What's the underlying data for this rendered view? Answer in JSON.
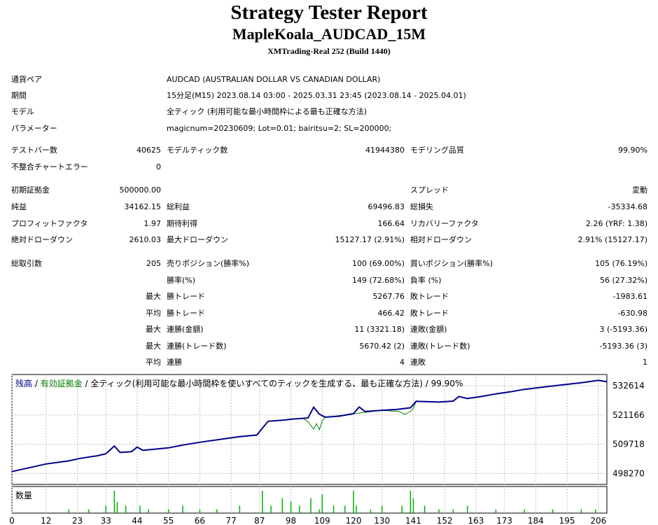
{
  "header": {
    "title": "Strategy Tester Report",
    "expert": "MapleKoala_AUDCAD_15M",
    "server": "XMTrading-Real 252 (Build 1440)"
  },
  "settings": [
    {
      "label": "通貨ペア",
      "value": "AUDCAD (AUSTRALIAN DOLLAR VS CANADIAN DOLLAR)"
    },
    {
      "label": "期間",
      "value": "15分足(M15) 2023.08.14 03:00 - 2025.03.31 23:45 (2023.08.14 - 2025.04.01)"
    },
    {
      "label": "モデル",
      "value": "全ティック (利用可能な最小時間枠による最も正確な方法)"
    },
    {
      "label": "パラメーター",
      "value": "magicnum=20230609; Lot=0.01; bairitsu=2; SL=200000;"
    }
  ],
  "stats": {
    "test_bars": {
      "label": "テストバー数",
      "value": "40625"
    },
    "model_ticks": {
      "label": "モデルティック数",
      "value": "41944380"
    },
    "model_quality": {
      "label": "モデリング品質",
      "value": "99.90%"
    },
    "mismatch_errors": {
      "label": "不整合チャートエラー",
      "value": "0"
    },
    "initial_deposit": {
      "label": "初期証拠金",
      "value": "500000.00"
    },
    "spread": {
      "label": "スプレッド",
      "value": "変動"
    },
    "net_profit": {
      "label": "純益",
      "value": "34162.15"
    },
    "gross_profit": {
      "label": "総利益",
      "value": "69496.83"
    },
    "gross_loss": {
      "label": "総損失",
      "value": "-35334.68"
    },
    "profit_factor": {
      "label": "プロフィットファクタ",
      "value": "1.97"
    },
    "expected_payoff": {
      "label": "期待利得",
      "value": "166.64"
    },
    "recovery_factor": {
      "label": "リカバリーファクタ",
      "value": "2.26 (YRF: 1.38)"
    },
    "abs_drawdown": {
      "label": "絶対ドローダウン",
      "value": "2610.03"
    },
    "max_drawdown": {
      "label": "最大ドローダウン",
      "value": "15127.17 (2.91%)"
    },
    "rel_drawdown": {
      "label": "相対ドローダウン",
      "value": "2.91% (15127.17)"
    },
    "total_trades": {
      "label": "総取引数",
      "value": "205"
    },
    "short_positions": {
      "label": "売りポジション(勝率%)",
      "value": "100 (69.00%)"
    },
    "long_positions": {
      "label": "買いポジション(勝率%)",
      "value": "105 (76.19%)"
    },
    "win_rate": {
      "label": "勝率(%)",
      "value": "149 (72.68%)"
    },
    "loss_rate": {
      "label": "負率 (%)",
      "value": "56 (27.32%)"
    },
    "q_max": "最大",
    "q_avg": "平均",
    "largest_win": {
      "label": "勝トレード",
      "value": "5267.76"
    },
    "largest_loss": {
      "label": "敗トレード",
      "value": "-1983.61"
    },
    "avg_win": {
      "label": "勝トレード",
      "value": "466.42"
    },
    "avg_loss": {
      "label": "敗トレード",
      "value": "-630.98"
    },
    "max_consec_wins": {
      "label": "連勝(金額)",
      "value": "11 (3321.18)"
    },
    "max_consec_losses": {
      "label": "連敗(金額)",
      "value": "3 (-5193.36)"
    },
    "max_consec_profit": {
      "label": "連勝(トレード数)",
      "value": "5670.42 (2)"
    },
    "max_consec_loss": {
      "label": "連敗(トレード数)",
      "value": "-5193.36 (3)"
    },
    "avg_consec_wins": {
      "label": "連勝",
      "value": "4"
    },
    "avg_consec_losses": {
      "label": "連敗",
      "value": "1"
    }
  },
  "colors": {
    "balance": "#00008b",
    "equity": "#008000",
    "volume": "#00b000",
    "grid": "#c0c0c0"
  },
  "chart_data": [
    {
      "type": "line",
      "legend": {
        "balance": "残高",
        "sep1": " / ",
        "equity": "有効証拠金",
        "rest": " / 全ティック(利用可能な最小時間枠を使いすべてのティックを生成する、最も正確な方法) / 99.90%"
      },
      "ylim": [
        494000,
        537000
      ],
      "y_ticks": [
        498270,
        509718,
        521166,
        532614
      ],
      "xlim": [
        0,
        209
      ],
      "x_ticks": [
        0,
        12,
        23,
        33,
        44,
        55,
        66,
        77,
        87,
        98,
        109,
        120,
        130,
        141,
        152,
        163,
        173,
        184,
        195,
        206
      ],
      "series": [
        {
          "key": "balance",
          "x": [
            0,
            12,
            20,
            24,
            30,
            33,
            36,
            38,
            42,
            44,
            46,
            55,
            60,
            66,
            75,
            80,
            86,
            90,
            96,
            98,
            104,
            106,
            108,
            110,
            115,
            120,
            122,
            124,
            130,
            135,
            140,
            142,
            150,
            155,
            157,
            160,
            165,
            170,
            175,
            180,
            190,
            200,
            206,
            209
          ],
          "y": [
            499000,
            502000,
            503200,
            504200,
            505200,
            506000,
            509000,
            506500,
            506800,
            508600,
            507300,
            508300,
            509400,
            510500,
            511900,
            512700,
            513300,
            518700,
            519200,
            519500,
            520000,
            524200,
            521500,
            520300,
            520700,
            521700,
            524300,
            522500,
            523000,
            523300,
            524000,
            526500,
            526200,
            526600,
            528400,
            527600,
            528400,
            529400,
            530200,
            531200,
            532500,
            533800,
            534700,
            534200
          ]
        },
        {
          "key": "equity",
          "x": [
            102,
            104,
            106,
            107,
            108,
            109,
            110,
            112,
            130,
            136,
            138,
            140,
            141,
            142
          ],
          "y": [
            520000,
            518500,
            515600,
            517800,
            515400,
            518800,
            520300,
            520500,
            523000,
            522500,
            521400,
            522500,
            523800,
            526500
          ]
        }
      ]
    },
    {
      "type": "bar",
      "title": "数量",
      "x": [
        20,
        27,
        33,
        36,
        37,
        40,
        45,
        48,
        55,
        60,
        66,
        72,
        80,
        88,
        91,
        95,
        98,
        101,
        105,
        108,
        109,
        113,
        117,
        120,
        121,
        126,
        130,
        137,
        140,
        141,
        145,
        150,
        155,
        160,
        170,
        180,
        190,
        200,
        205
      ],
      "values": [
        1,
        1,
        2,
        6,
        3,
        2,
        2,
        1,
        1,
        2,
        1,
        1,
        2,
        6,
        2,
        4,
        3,
        2,
        4,
        1,
        5,
        2,
        2,
        6,
        2,
        1,
        2,
        2,
        6,
        4,
        2,
        1,
        1,
        2,
        1,
        1,
        1,
        1,
        1
      ]
    }
  ]
}
